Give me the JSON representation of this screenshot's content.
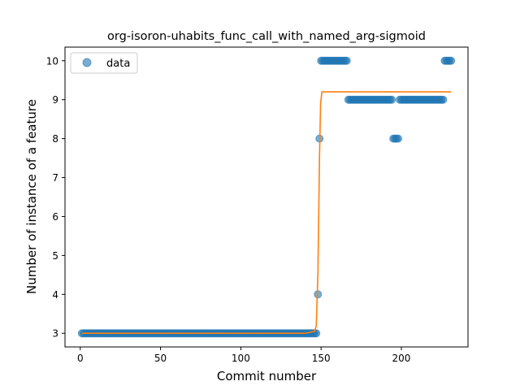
{
  "chart_data": {
    "type": "scatter",
    "title": "org-isoron-uhabits_func_call_with_named_arg-sigmoid",
    "xlabel": "Commit number",
    "ylabel": "Number of instance of a feature",
    "xlim": [
      -9.5,
      241.5
    ],
    "ylim": [
      2.65,
      10.35
    ],
    "xticks": [
      0,
      50,
      100,
      150,
      200
    ],
    "yticks": [
      3,
      4,
      5,
      6,
      7,
      8,
      9,
      10
    ],
    "legend": {
      "position": "top-left",
      "entries": [
        "data"
      ]
    },
    "colors": {
      "scatter": "#1f77b4",
      "fit": "#ff7f0e"
    },
    "series": [
      {
        "name": "data",
        "kind": "scatter",
        "segments": [
          {
            "x_start": 1,
            "x_end": 147,
            "y": 3
          },
          {
            "x_start": 148,
            "x_end": 148,
            "y": 4
          },
          {
            "x_start": 149,
            "x_end": 149,
            "y": 8
          },
          {
            "x_start": 150,
            "x_end": 166,
            "y": 10
          },
          {
            "x_start": 167,
            "x_end": 194,
            "y": 9
          },
          {
            "x_start": 195,
            "x_end": 198,
            "y": 8
          },
          {
            "x_start": 199,
            "x_end": 226,
            "y": 9
          },
          {
            "x_start": 227,
            "x_end": 231,
            "y": 10
          }
        ]
      },
      {
        "kind": "line",
        "points": [
          [
            1,
            3.0
          ],
          [
            140,
            3.0
          ],
          [
            146,
            3.05
          ],
          [
            147,
            3.2
          ],
          [
            148,
            4.5
          ],
          [
            149,
            7.5
          ],
          [
            149.7,
            8.9
          ],
          [
            150.5,
            9.2
          ],
          [
            231,
            9.2
          ]
        ]
      }
    ]
  }
}
